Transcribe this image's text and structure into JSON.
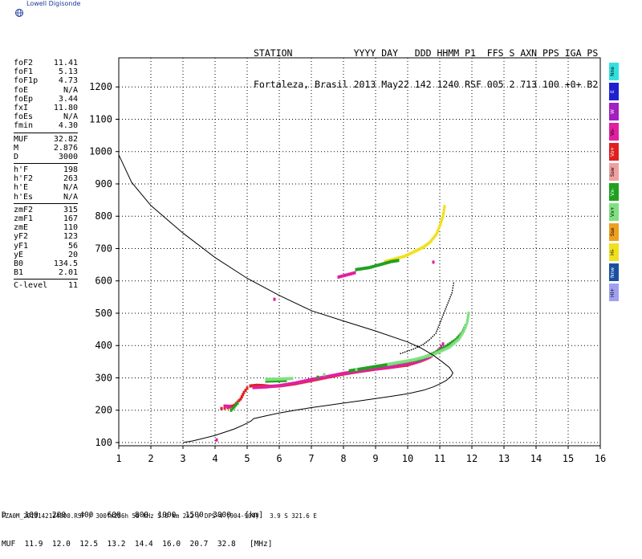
{
  "logo": {
    "text": "Lowell Digisonde",
    "icon": "globe-icon"
  },
  "header": {
    "line1": "STATION           YYYY DAY   DDD HHMM P1  FFS S AXN PPS IGA PS",
    "line2": "Fortaleza, Brasil 2013 May22 142 1240 RSF 005 2 713 100 +0+ B2"
  },
  "params": [
    {
      "k": "foF2",
      "v": "11.41"
    },
    {
      "k": "foF1",
      "v": "5.13"
    },
    {
      "k": "foF1p",
      "v": "4.73"
    },
    {
      "k": "foE",
      "v": "N/A"
    },
    {
      "k": "foEp",
      "v": "3.44"
    },
    {
      "k": "fxI",
      "v": "11.80"
    },
    {
      "k": "foEs",
      "v": "N/A"
    },
    {
      "k": "fmin",
      "v": "4.30"
    },
    {
      "k": "MUF",
      "v": "32.82"
    },
    {
      "k": "M",
      "v": "2.876"
    },
    {
      "k": "D",
      "v": "3000"
    },
    {
      "k": "h'F",
      "v": "198"
    },
    {
      "k": "h'F2",
      "v": "263"
    },
    {
      "k": "h'E",
      "v": "N/A"
    },
    {
      "k": "h'Es",
      "v": "N/A"
    },
    {
      "k": "zmF2",
      "v": "315"
    },
    {
      "k": "zmF1",
      "v": "167"
    },
    {
      "k": "zmE",
      "v": "110"
    },
    {
      "k": "yF2",
      "v": "123"
    },
    {
      "k": "yF1",
      "v": "56"
    },
    {
      "k": "yE",
      "v": "20"
    },
    {
      "k": "B0",
      "v": "134.5"
    },
    {
      "k": "B1",
      "v": "2.01"
    },
    {
      "k": "C-level",
      "v": "11"
    }
  ],
  "legend": [
    {
      "label": "Nne",
      "color": "#33e0e0"
    },
    {
      "label": "E",
      "color": "#2020d0"
    },
    {
      "label": "W",
      "color": "#a020c0"
    },
    {
      "label": "Vo-",
      "color": "#e020a0"
    },
    {
      "label": "Vo+",
      "color": "#e02020"
    },
    {
      "label": "Ssw",
      "color": "#f0a0a0"
    },
    {
      "label": "Vx-",
      "color": "#20a020"
    },
    {
      "label": "Vx+",
      "color": "#80e080"
    },
    {
      "label": "Sse",
      "color": "#f0a020"
    },
    {
      "label": "Hi-",
      "color": "#f0e020"
    },
    {
      "label": "Nnw",
      "color": "#1a50a0"
    },
    {
      "label": "Hi+",
      "color": "#a0a0f0"
    }
  ],
  "bottom": {
    "line1": "D    100   200   400   600   800  1000  1500  3000   [km]",
    "line2": "MUF  11.9  12.0  12.5  13.2  14.4  16.0  20.7  32.8   [MHz]"
  },
  "footer": "FZA0M_2013142124000.RSF / 300fx256h 50 kHz 5.0 km 2x2 / DPS-4 (904-904)   3.9 S 321.6 E",
  "chart_data": {
    "type": "scatter",
    "xlim": [
      1,
      16
    ],
    "ylim": [
      90,
      1290
    ],
    "xticks": [
      1,
      2,
      3,
      4,
      5,
      6,
      7,
      8,
      9,
      10,
      11,
      12,
      13,
      14,
      15,
      16
    ],
    "yticks": [
      100,
      200,
      300,
      400,
      500,
      600,
      700,
      800,
      900,
      1000,
      1100,
      1200
    ],
    "grid": true,
    "profile_line": [
      [
        3.0,
        100
      ],
      [
        3.3,
        105
      ],
      [
        3.6,
        112
      ],
      [
        4.0,
        122
      ],
      [
        4.3,
        132
      ],
      [
        4.6,
        142
      ],
      [
        4.9,
        155
      ],
      [
        5.13,
        167
      ],
      [
        5.2,
        174
      ],
      [
        5.6,
        183
      ],
      [
        6.0,
        191
      ],
      [
        6.5,
        200
      ],
      [
        7.0,
        208
      ],
      [
        7.5,
        215
      ],
      [
        8.0,
        222
      ],
      [
        8.5,
        229
      ],
      [
        9.0,
        236
      ],
      [
        9.5,
        243
      ],
      [
        10.0,
        251
      ],
      [
        10.5,
        262
      ],
      [
        10.8,
        272
      ],
      [
        11.0,
        281
      ],
      [
        11.2,
        292
      ],
      [
        11.35,
        305
      ],
      [
        11.41,
        315
      ],
      [
        11.3,
        332
      ],
      [
        11.1,
        348
      ],
      [
        10.8,
        370
      ],
      [
        10.4,
        393
      ],
      [
        10.0,
        411
      ],
      [
        9.0,
        445
      ],
      [
        8.0,
        476
      ],
      [
        7.0,
        508
      ],
      [
        6.0,
        555
      ],
      [
        5.0,
        608
      ],
      [
        4.0,
        672
      ],
      [
        3.0,
        748
      ],
      [
        2.0,
        833
      ],
      [
        1.4,
        905
      ],
      [
        1.0,
        990
      ]
    ],
    "trace_series": [
      {
        "color": "#e02020",
        "points": [
          [
            4.2,
            205
          ],
          [
            4.3,
            207
          ],
          [
            4.4,
            208
          ],
          [
            4.6,
            215
          ],
          [
            4.8,
            235
          ],
          [
            4.9,
            255
          ],
          [
            5.0,
            268
          ],
          [
            5.1,
            275
          ],
          [
            5.3,
            277
          ],
          [
            5.5,
            276
          ],
          [
            5.7,
            274
          ],
          [
            6.0,
            275
          ],
          [
            6.5,
            282
          ],
          [
            7.0,
            292
          ],
          [
            7.5,
            302
          ],
          [
            8.0,
            312
          ],
          [
            8.5,
            320
          ],
          [
            9.0,
            327
          ],
          [
            9.5,
            333
          ],
          [
            10.0,
            340
          ],
          [
            10.4,
            352
          ],
          [
            10.7,
            365
          ],
          [
            10.9,
            380
          ]
        ]
      },
      {
        "color": "#e020a0",
        "points": [
          [
            5.2,
            270
          ],
          [
            5.6,
            272
          ],
          [
            6.0,
            276
          ],
          [
            6.5,
            284
          ],
          [
            7.0,
            295
          ],
          [
            7.5,
            304
          ],
          [
            8.0,
            314
          ],
          [
            8.5,
            321
          ],
          [
            9.0,
            328
          ],
          [
            9.5,
            334
          ],
          [
            10.0,
            343
          ],
          [
            10.3,
            350
          ],
          [
            10.6,
            360
          ],
          [
            10.8,
            372
          ],
          [
            11.0,
            390
          ],
          [
            11.1,
            405
          ]
        ]
      },
      {
        "color": "#20a020",
        "points": [
          [
            4.5,
            200
          ],
          [
            4.6,
            210
          ],
          [
            4.7,
            222
          ],
          [
            5.6,
            290
          ],
          [
            6.2,
            292
          ],
          [
            7.2,
            302
          ],
          [
            8.2,
            322
          ],
          [
            9.0,
            335
          ],
          [
            9.8,
            348
          ],
          [
            10.4,
            358
          ],
          [
            10.9,
            380
          ],
          [
            11.2,
            398
          ],
          [
            11.5,
            418
          ],
          [
            11.7,
            440
          ],
          [
            11.8,
            460
          ]
        ]
      },
      {
        "color": "#80e080",
        "points": [
          [
            5.6,
            295
          ],
          [
            6.4,
            298
          ],
          [
            7.4,
            310
          ],
          [
            8.4,
            326
          ],
          [
            9.4,
            342
          ],
          [
            10.2,
            356
          ],
          [
            10.8,
            372
          ],
          [
            11.3,
            395
          ],
          [
            11.6,
            420
          ],
          [
            11.75,
            445
          ],
          [
            11.85,
            470
          ],
          [
            11.9,
            500
          ]
        ]
      },
      {
        "color": "#000000",
        "points": [
          [
            9.8,
            372
          ],
          [
            10.2,
            386
          ],
          [
            10.5,
            400
          ],
          [
            10.7,
            415
          ],
          [
            10.9,
            435
          ],
          [
            11.0,
            460
          ],
          [
            11.1,
            485
          ],
          [
            11.2,
            510
          ],
          [
            11.3,
            535
          ],
          [
            11.4,
            560
          ],
          [
            11.45,
            590
          ]
        ]
      },
      {
        "color": "#f0e020",
        "points": [
          [
            9.3,
            660
          ],
          [
            9.6,
            668
          ],
          [
            9.9,
            676
          ],
          [
            10.2,
            690
          ],
          [
            10.5,
            705
          ],
          [
            10.7,
            720
          ],
          [
            10.9,
            745
          ],
          [
            11.0,
            770
          ],
          [
            11.1,
            800
          ],
          [
            11.15,
            830
          ]
        ]
      },
      {
        "color": "#20a020",
        "points": [
          [
            8.4,
            635
          ],
          [
            8.6,
            638
          ],
          [
            8.8,
            641
          ],
          [
            9.5,
            660
          ],
          [
            9.7,
            663
          ]
        ]
      },
      {
        "color": "#e020a0",
        "points": [
          [
            8.35,
            625
          ],
          [
            7.85,
            612
          ],
          [
            5.85,
            543
          ],
          [
            10.8,
            658
          ],
          [
            4.45,
            212
          ],
          [
            4.3,
            213
          ],
          [
            4.05,
            108
          ]
        ]
      }
    ]
  }
}
